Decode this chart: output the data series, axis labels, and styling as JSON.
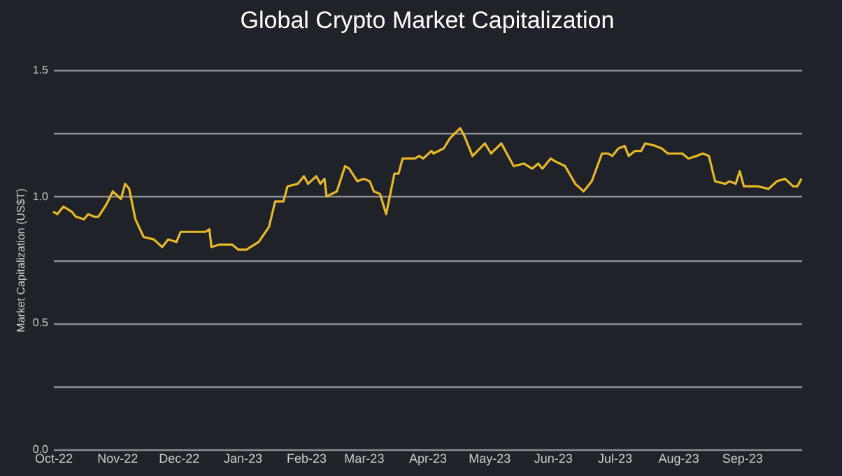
{
  "chart_data": {
    "type": "line",
    "title": "Global Crypto Market Capitalization",
    "ylabel": "Market Capitalization (US$T)",
    "x": [
      "2022-10-01",
      "2022-10-03",
      "2022-10-06",
      "2022-10-10",
      "2022-10-12",
      "2022-10-16",
      "2022-10-18",
      "2022-10-21",
      "2022-10-23",
      "2022-10-27",
      "2022-10-30",
      "2022-11-03",
      "2022-11-05",
      "2022-11-07",
      "2022-11-10",
      "2022-11-14",
      "2022-11-19",
      "2022-11-23",
      "2022-11-26",
      "2022-11-30",
      "2022-12-02",
      "2022-12-08",
      "2022-12-14",
      "2022-12-16",
      "2022-12-17",
      "2022-12-21",
      "2022-12-27",
      "2022-12-30",
      "2023-01-03",
      "2023-01-09",
      "2023-01-14",
      "2023-01-17",
      "2023-01-21",
      "2023-01-23",
      "2023-01-28",
      "2023-01-31",
      "2023-02-02",
      "2023-02-06",
      "2023-02-08",
      "2023-02-10",
      "2023-02-11",
      "2023-02-16",
      "2023-02-20",
      "2023-02-22",
      "2023-02-26",
      "2023-03-01",
      "2023-03-04",
      "2023-03-06",
      "2023-03-09",
      "2023-03-12",
      "2023-03-16",
      "2023-03-18",
      "2023-03-20",
      "2023-03-26",
      "2023-03-28",
      "2023-03-30",
      "2023-04-03",
      "2023-04-04",
      "2023-04-09",
      "2023-04-12",
      "2023-04-17",
      "2023-04-19",
      "2023-04-23",
      "2023-04-29",
      "2023-05-02",
      "2023-05-07",
      "2023-05-13",
      "2023-05-18",
      "2023-05-22",
      "2023-05-25",
      "2023-05-27",
      "2023-05-31",
      "2023-06-02",
      "2023-06-07",
      "2023-06-12",
      "2023-06-16",
      "2023-06-20",
      "2023-06-25",
      "2023-06-28",
      "2023-06-30",
      "2023-07-03",
      "2023-07-06",
      "2023-07-08",
      "2023-07-11",
      "2023-07-14",
      "2023-07-16",
      "2023-07-21",
      "2023-07-24",
      "2023-07-27",
      "2023-08-03",
      "2023-08-06",
      "2023-08-10",
      "2023-08-13",
      "2023-08-16",
      "2023-08-19",
      "2023-08-24",
      "2023-08-26",
      "2023-08-29",
      "2023-08-31",
      "2023-09-02",
      "2023-09-09",
      "2023-09-14",
      "2023-09-18",
      "2023-09-22",
      "2023-09-26",
      "2023-09-28",
      "2023-09-30"
    ],
    "series": [
      {
        "color": "#e8b923",
        "values": [
          0.94,
          0.93,
          0.96,
          0.94,
          0.92,
          0.91,
          0.93,
          0.92,
          0.92,
          0.97,
          1.02,
          0.99,
          1.05,
          1.03,
          0.91,
          0.84,
          0.83,
          0.8,
          0.83,
          0.82,
          0.86,
          0.86,
          0.86,
          0.87,
          0.8,
          0.81,
          0.81,
          0.79,
          0.79,
          0.82,
          0.88,
          0.98,
          0.98,
          1.04,
          1.05,
          1.08,
          1.05,
          1.08,
          1.05,
          1.07,
          1.0,
          1.02,
          1.12,
          1.11,
          1.06,
          1.07,
          1.06,
          1.02,
          1.01,
          0.93,
          1.09,
          1.09,
          1.15,
          1.15,
          1.16,
          1.15,
          1.18,
          1.17,
          1.19,
          1.23,
          1.27,
          1.24,
          1.16,
          1.21,
          1.17,
          1.21,
          1.12,
          1.13,
          1.11,
          1.13,
          1.11,
          1.15,
          1.14,
          1.12,
          1.05,
          1.02,
          1.06,
          1.17,
          1.17,
          1.16,
          1.19,
          1.2,
          1.16,
          1.18,
          1.18,
          1.21,
          1.2,
          1.19,
          1.17,
          1.17,
          1.15,
          1.16,
          1.17,
          1.16,
          1.06,
          1.05,
          1.06,
          1.05,
          1.1,
          1.04,
          1.04,
          1.03,
          1.06,
          1.07,
          1.04,
          1.04,
          1.07
        ]
      }
    ],
    "xlim": [
      "2022-10-01",
      "2023-09-30"
    ],
    "xticks": [
      {
        "value": "2022-10-01",
        "label": "Oct-22"
      },
      {
        "value": "2022-11-01",
        "label": "Nov-22"
      },
      {
        "value": "2022-12-01",
        "label": "Dec-22"
      },
      {
        "value": "2023-01-01",
        "label": "Jan-23"
      },
      {
        "value": "2023-02-01",
        "label": "Feb-23"
      },
      {
        "value": "2023-03-01",
        "label": "Mar-23"
      },
      {
        "value": "2023-04-01",
        "label": "Apr-23"
      },
      {
        "value": "2023-05-01",
        "label": "May-23"
      },
      {
        "value": "2023-06-01",
        "label": "Jun-23"
      },
      {
        "value": "2023-07-01",
        "label": "Jul-23"
      },
      {
        "value": "2023-08-01",
        "label": "Aug-23"
      },
      {
        "value": "2023-09-01",
        "label": "Sep-23"
      }
    ],
    "ylim": [
      0,
      1.5
    ],
    "yticks": [
      {
        "value": 0,
        "label": "0.0"
      },
      {
        "value": 0.25,
        "label": null
      },
      {
        "value": 0.5,
        "label": "0.5"
      },
      {
        "value": 0.75,
        "label": null
      },
      {
        "value": 1,
        "label": "1.0"
      },
      {
        "value": 1.25,
        "label": null
      },
      {
        "value": 1.5,
        "label": "1.5"
      }
    ],
    "grid": "y",
    "legend": false,
    "marker": "none",
    "line_style": "solid"
  }
}
